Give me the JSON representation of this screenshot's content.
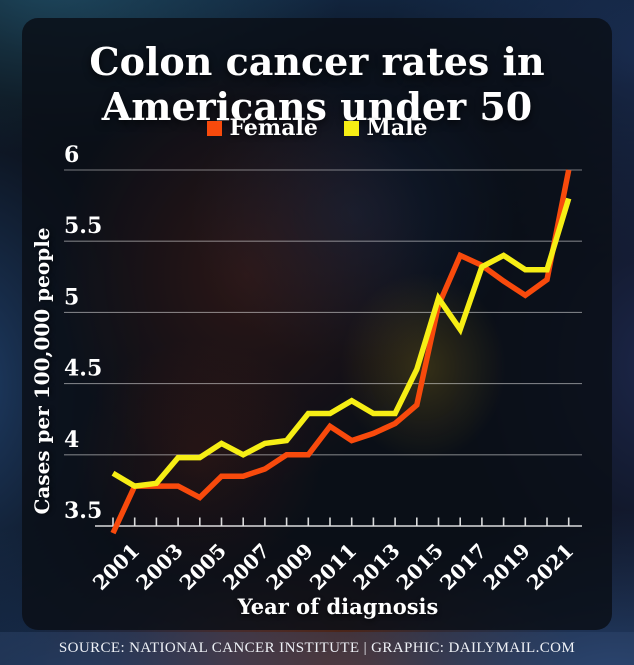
{
  "title": {
    "line1": "Colon cancer rates in",
    "line2": "Americans under 50"
  },
  "footer": {
    "text": "SOURCE: NATIONAL CANCER INSTITUTE  |  GRAPHIC: DAILYMAIL.COM"
  },
  "colors": {
    "female_line": "#f84a0c",
    "male_line": "#f6ee15",
    "grid": "rgba(255,255,255,0.45)",
    "axis": "rgba(255,255,255,0.85)"
  },
  "chart_data": {
    "type": "line",
    "title": "Colon cancer rates in Americans under 50",
    "xlabel": "Year of diagnosis",
    "ylabel": "Cases per 100,000 people",
    "ylim": [
      3.5,
      6.0
    ],
    "grid": true,
    "legend_position": "top",
    "x": [
      2000,
      2001,
      2002,
      2003,
      2004,
      2005,
      2006,
      2007,
      2008,
      2009,
      2010,
      2011,
      2012,
      2013,
      2014,
      2015,
      2016,
      2017,
      2018,
      2019,
      2020,
      2021
    ],
    "xtick_labels": [
      "2001",
      "2003",
      "2005",
      "2007",
      "2009",
      "2011",
      "2013",
      "2015",
      "2017",
      "2019",
      "2021"
    ],
    "ytick_values": [
      3.5,
      4,
      4.5,
      5,
      5.5,
      6
    ],
    "ytick_labels": [
      "3.5",
      "4",
      "4.5",
      "5",
      "5.5",
      "6"
    ],
    "series": [
      {
        "name": "Female",
        "color": "#f84a0c",
        "values": [
          3.45,
          3.78,
          3.78,
          3.78,
          3.7,
          3.85,
          3.85,
          3.9,
          4.0,
          4.0,
          4.2,
          4.1,
          4.15,
          4.22,
          4.35,
          5.05,
          5.4,
          5.33,
          5.22,
          5.12,
          5.23,
          6.0
        ]
      },
      {
        "name": "Male",
        "color": "#f6ee15",
        "values": [
          3.87,
          3.78,
          3.8,
          3.98,
          3.98,
          4.08,
          4.0,
          4.08,
          4.1,
          4.29,
          4.29,
          4.38,
          4.29,
          4.29,
          4.6,
          5.1,
          4.88,
          5.32,
          5.4,
          5.3,
          5.3,
          5.8
        ]
      }
    ]
  }
}
